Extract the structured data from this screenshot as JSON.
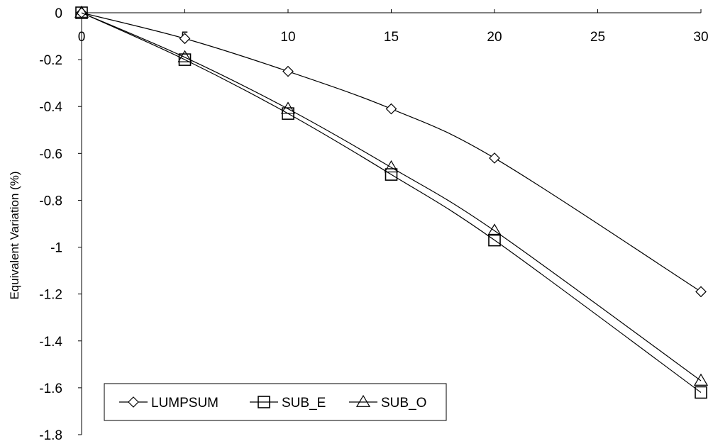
{
  "chart_data": {
    "type": "line",
    "title": "",
    "xlabel": "",
    "ylabel": "Equivalent Variation (%)",
    "xlim": [
      0,
      30
    ],
    "ylim": [
      -1.8,
      0
    ],
    "x_ticks": [
      0,
      5,
      10,
      15,
      20,
      25,
      30
    ],
    "y_ticks": [
      0,
      -0.2,
      -0.4,
      -0.6,
      -0.8,
      -1,
      -1.2,
      -1.4,
      -1.6,
      -1.8
    ],
    "x_axis_position": "top",
    "grid": false,
    "legend_placement": "bottom-left",
    "series": [
      {
        "name": "LUMPSUM",
        "marker": "diamond",
        "x": [
          0,
          5,
          10,
          15,
          20,
          30
        ],
        "y": [
          0,
          -0.11,
          -0.25,
          -0.41,
          -0.62,
          -1.19
        ]
      },
      {
        "name": "SUB_E",
        "marker": "square",
        "x": [
          0,
          5,
          10,
          15,
          20,
          30
        ],
        "y": [
          0,
          -0.2,
          -0.43,
          -0.69,
          -0.97,
          -1.62
        ]
      },
      {
        "name": "SUB_O",
        "marker": "triangle",
        "x": [
          0,
          5,
          10,
          15,
          20,
          30
        ],
        "y": [
          0,
          -0.19,
          -0.41,
          -0.66,
          -0.93,
          -1.57
        ]
      }
    ]
  }
}
